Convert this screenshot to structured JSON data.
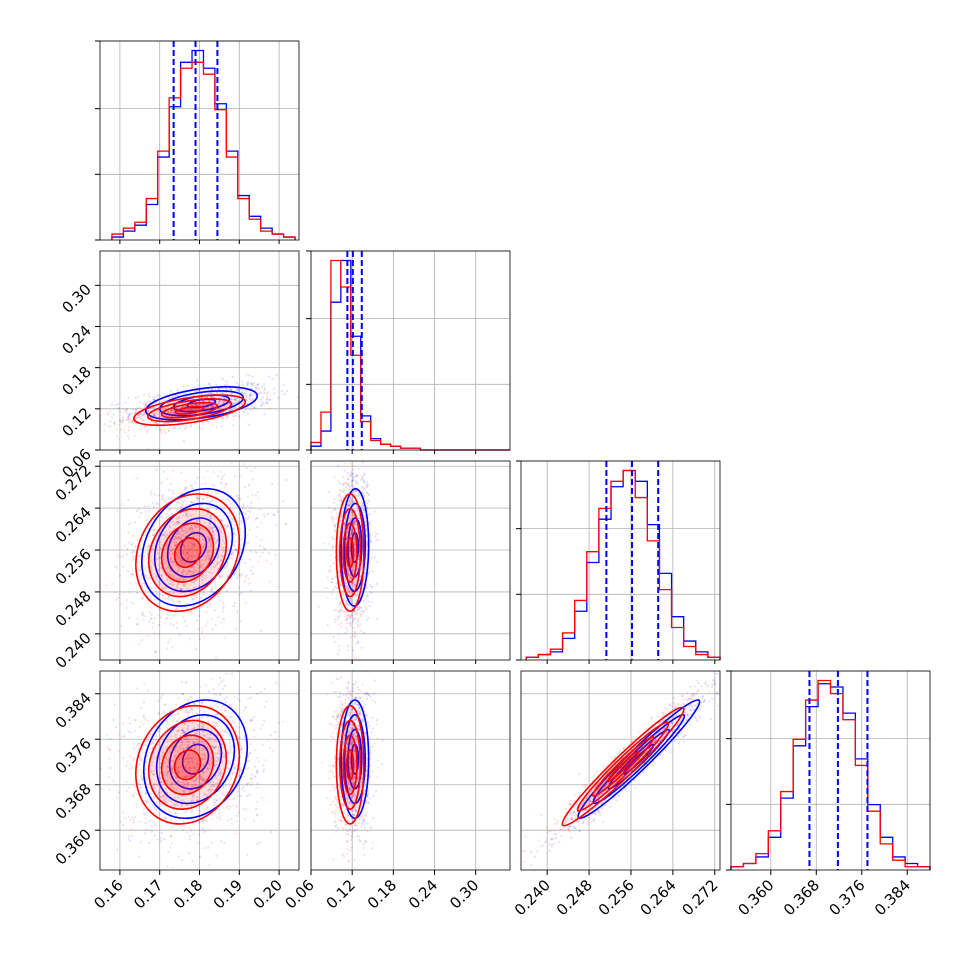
{
  "chart_data": {
    "type": "corner",
    "colors": {
      "series_a": "#0000ff",
      "series_b": "#ff0000"
    },
    "params": [
      {
        "range": [
          0.155,
          0.205
        ],
        "ticks": [
          "0.16",
          "0.17",
          "0.18",
          "0.19",
          "0.20"
        ],
        "tick_values": [
          0.16,
          0.17,
          0.18,
          0.19,
          0.2
        ],
        "median": 0.179,
        "q16": 0.1735,
        "q84": 0.1845
      },
      {
        "range": [
          0.06,
          0.35
        ],
        "ticks": [
          "0.06",
          "0.12",
          "0.18",
          "0.24",
          "0.30"
        ],
        "tick_values": [
          0.06,
          0.12,
          0.18,
          0.24,
          0.3
        ],
        "median": 0.121,
        "q16": 0.113,
        "q84": 0.134
      },
      {
        "range": [
          0.235,
          0.273
        ],
        "ticks": [
          "0.240",
          "0.248",
          "0.256",
          "0.264",
          "0.272"
        ],
        "tick_values": [
          0.24,
          0.248,
          0.256,
          0.264,
          0.272
        ],
        "median": 0.2562,
        "q16": 0.2513,
        "q84": 0.2612
      },
      {
        "range": [
          0.353,
          0.388
        ],
        "ticks": [
          "0.360",
          "0.368",
          "0.376",
          "0.384"
        ],
        "tick_values": [
          0.36,
          0.368,
          0.376,
          0.384
        ],
        "median": 0.3718,
        "q16": 0.3668,
        "q84": 0.377
      }
    ],
    "hist1d": [
      {
        "a": [
          1,
          3,
          5,
          12,
          28,
          45,
          60,
          64,
          58,
          46,
          30,
          15,
          8,
          4,
          2,
          1
        ],
        "b": [
          2,
          4,
          6,
          14,
          30,
          48,
          58,
          60,
          56,
          44,
          28,
          14,
          7,
          3,
          2,
          1
        ]
      },
      {
        "a": [
          2,
          10,
          78,
          100,
          60,
          18,
          6,
          3,
          2,
          1,
          1,
          0,
          0,
          0,
          0,
          0,
          0,
          0,
          0,
          0
        ],
        "b": [
          4,
          20,
          100,
          86,
          50,
          15,
          5,
          3,
          2,
          1,
          1,
          0,
          0,
          0,
          0,
          0,
          0,
          0,
          0,
          0
        ]
      },
      {
        "a": [
          1,
          2,
          3,
          8,
          18,
          36,
          52,
          64,
          70,
          66,
          50,
          32,
          16,
          7,
          3,
          1
        ],
        "b": [
          1,
          2,
          4,
          10,
          22,
          40,
          56,
          66,
          70,
          60,
          44,
          26,
          12,
          5,
          2,
          1
        ]
      },
      {
        "a": [
          1,
          2,
          4,
          10,
          22,
          38,
          50,
          57,
          56,
          48,
          34,
          20,
          10,
          4,
          2,
          1
        ],
        "b": [
          1,
          2,
          5,
          12,
          24,
          40,
          52,
          58,
          54,
          46,
          32,
          18,
          8,
          3,
          1,
          1
        ]
      }
    ],
    "hist_bins": [
      [
        0.158,
        0.204
      ],
      [
        0.06,
        0.35
      ],
      [
        0.236,
        0.273
      ],
      [
        0.353,
        0.388
      ]
    ],
    "pairs": [
      {
        "row": 1,
        "col": 0,
        "a": {
          "mean": [
            0.1805,
            0.128
          ],
          "sd": [
            0.007,
            0.012
          ],
          "rho": 0.45
        },
        "b": {
          "mean": [
            0.1775,
            0.118
          ],
          "sd": [
            0.007,
            0.011
          ],
          "rho": 0.55
        }
      },
      {
        "row": 2,
        "col": 0,
        "a": {
          "mean": [
            0.1785,
            0.2565
          ],
          "sd": [
            0.0065,
            0.0056
          ],
          "rho": 0.25
        },
        "b": {
          "mean": [
            0.177,
            0.2555
          ],
          "sd": [
            0.0065,
            0.0056
          ],
          "rho": 0.2
        }
      },
      {
        "row": 2,
        "col": 1,
        "a": {
          "mean": [
            0.124,
            0.2565
          ],
          "sd": [
            0.01,
            0.0056
          ],
          "rho": 0.05
        },
        "b": {
          "mean": [
            0.117,
            0.2555
          ],
          "sd": [
            0.01,
            0.0056
          ],
          "rho": 0.0
        }
      },
      {
        "row": 3,
        "col": 0,
        "a": {
          "mean": [
            0.179,
            0.3725
          ],
          "sd": [
            0.0065,
            0.0052
          ],
          "rho": 0.2
        },
        "b": {
          "mean": [
            0.177,
            0.3715
          ],
          "sd": [
            0.0065,
            0.0052
          ],
          "rho": 0.15
        }
      },
      {
        "row": 3,
        "col": 1,
        "a": {
          "mean": [
            0.124,
            0.3725
          ],
          "sd": [
            0.01,
            0.0052
          ],
          "rho": 0.0
        },
        "b": {
          "mean": [
            0.117,
            0.3715
          ],
          "sd": [
            0.01,
            0.0052
          ],
          "rho": 0.0
        }
      },
      {
        "row": 3,
        "col": 2,
        "a": {
          "mean": [
            0.2575,
            0.3725
          ],
          "sd": [
            0.0058,
            0.0052
          ],
          "rho": 0.97
        },
        "b": {
          "mean": [
            0.2545,
            0.3712
          ],
          "sd": [
            0.0058,
            0.0052
          ],
          "rho": 0.97
        }
      }
    ],
    "contour_levels_sigma": [
      0.5,
      1.0,
      1.5,
      2.0
    ],
    "grid": true,
    "title": "",
    "xlabel": "",
    "ylabel": ""
  }
}
